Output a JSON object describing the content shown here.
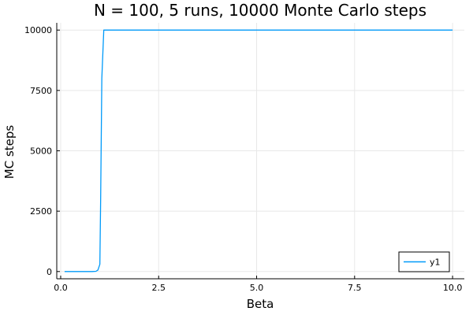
{
  "chart_data": {
    "type": "line",
    "title": "N = 100, 5 runs, 10000  Monte Carlo steps",
    "xlabel": "Beta",
    "ylabel": "MC steps",
    "xlim": [
      -0.1,
      10.3
    ],
    "ylim": [
      -300,
      10300
    ],
    "xticks": [
      0,
      2.5,
      5,
      7.5,
      10
    ],
    "xtick_labels": [
      "0.0",
      "2.5",
      "5.0",
      "7.5",
      "10.0"
    ],
    "yticks": [
      0,
      2500,
      5000,
      7500,
      10000
    ],
    "ytick_labels": [
      "0",
      "2500",
      "5000",
      "7500",
      "10000"
    ],
    "grid": true,
    "legend_position": "bottom-right",
    "series": [
      {
        "name": "y1",
        "color": "#009AF9",
        "x": [
          0.1,
          0.5,
          0.8,
          0.9,
          0.95,
          1.0,
          1.02,
          1.05,
          1.1,
          1.15,
          1.2,
          2.0,
          4.0,
          6.0,
          8.0,
          10.0
        ],
        "y": [
          0,
          0,
          0,
          10,
          60,
          300,
          3000,
          8000,
          10000,
          10000,
          10000,
          10000,
          10000,
          10000,
          10000,
          10000
        ]
      }
    ]
  }
}
